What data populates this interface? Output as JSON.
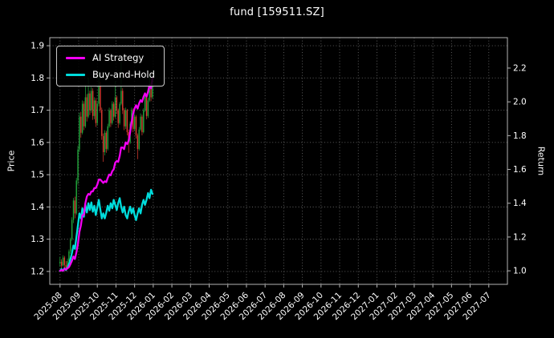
{
  "title": "fund [159511.SZ]",
  "legend": {
    "items": [
      {
        "label": "AI Strategy",
        "color": "#f400f4"
      },
      {
        "label": "Buy-and-Hold",
        "color": "#00dcdc"
      }
    ]
  },
  "colors": {
    "background": "#000000",
    "text": "#ffffff",
    "grid": "#666666",
    "frame": "#b3b3b3"
  },
  "chart_data": {
    "type": "candlestick+line",
    "title": "fund [159511.SZ]",
    "x_unit": "months since 2025-08 (index into x_tick_labels)",
    "x_tick_labels": [
      "2025-08",
      "2025-09",
      "2025-10",
      "2025-11",
      "2025-12",
      "2026-01",
      "2026-02",
      "2026-03",
      "2026-04",
      "2026-05",
      "2026-06",
      "2026-07",
      "2026-08",
      "2026-09",
      "2026-10",
      "2026-11",
      "2026-12",
      "2027-01",
      "2027-02",
      "2027-03",
      "2027-04",
      "2027-05",
      "2027-06",
      "2027-07"
    ],
    "x_range": [
      -0.55,
      24.0
    ],
    "price_axis": {
      "label": "Price",
      "ticks": [
        1.2,
        1.3,
        1.4,
        1.5,
        1.6,
        1.7,
        1.8,
        1.9
      ],
      "range": [
        1.16,
        1.925
      ]
    },
    "return_axis": {
      "label": "Return",
      "ticks": [
        1.0,
        1.2,
        1.4,
        1.6,
        1.8,
        2.0,
        2.2
      ],
      "range": [
        0.92,
        2.38
      ]
    },
    "grid": true,
    "legend_position": "upper-left",
    "candle_colors": {
      "up": "#22aa3c",
      "down": "#e03c31"
    },
    "x": [
      0.0,
      0.08,
      0.16,
      0.24,
      0.32,
      0.4,
      0.48,
      0.56,
      0.64,
      0.72,
      0.8,
      0.88,
      0.96,
      1.04,
      1.12,
      1.2,
      1.28,
      1.36,
      1.44,
      1.52,
      1.6,
      1.68,
      1.76,
      1.84,
      1.92,
      2.0,
      2.08,
      2.16,
      2.24,
      2.32,
      2.4,
      2.48,
      2.56,
      2.64,
      2.72,
      2.8,
      2.88,
      2.96,
      3.04,
      3.12,
      3.2,
      3.28,
      3.36,
      3.44,
      3.52,
      3.6,
      3.68,
      3.76,
      3.84,
      3.92,
      4.0,
      4.08,
      4.16,
      4.24,
      4.32,
      4.4,
      4.48,
      4.56,
      4.64,
      4.72,
      4.8,
      4.88,
      4.96
    ],
    "ohlc": [
      [
        1.225,
        1.245,
        1.215,
        1.23
      ],
      [
        1.23,
        1.238,
        1.21,
        1.218
      ],
      [
        1.218,
        1.25,
        1.215,
        1.243
      ],
      [
        1.243,
        1.248,
        1.212,
        1.22
      ],
      [
        1.22,
        1.232,
        1.2,
        1.212
      ],
      [
        1.212,
        1.24,
        1.208,
        1.232
      ],
      [
        1.232,
        1.268,
        1.228,
        1.262
      ],
      [
        1.262,
        1.305,
        1.255,
        1.3
      ],
      [
        1.3,
        1.368,
        1.295,
        1.36
      ],
      [
        1.36,
        1.428,
        1.35,
        1.42
      ],
      [
        1.42,
        1.432,
        1.365,
        1.38
      ],
      [
        1.38,
        1.49,
        1.375,
        1.482
      ],
      [
        1.482,
        1.59,
        1.47,
        1.578
      ],
      [
        1.578,
        1.692,
        1.57,
        1.68
      ],
      [
        1.68,
        1.695,
        1.615,
        1.63
      ],
      [
        1.63,
        1.73,
        1.625,
        1.72
      ],
      [
        1.72,
        1.728,
        1.638,
        1.65
      ],
      [
        1.65,
        1.78,
        1.645,
        1.74
      ],
      [
        1.74,
        1.75,
        1.665,
        1.68
      ],
      [
        1.68,
        1.8,
        1.675,
        1.752
      ],
      [
        1.752,
        1.76,
        1.685,
        1.7
      ],
      [
        1.7,
        1.772,
        1.692,
        1.76
      ],
      [
        1.76,
        1.768,
        1.67,
        1.682
      ],
      [
        1.682,
        1.74,
        1.672,
        1.73
      ],
      [
        1.73,
        1.738,
        1.648,
        1.66
      ],
      [
        1.66,
        1.728,
        1.652,
        1.72
      ],
      [
        1.72,
        1.82,
        1.712,
        1.78
      ],
      [
        1.78,
        1.788,
        1.692,
        1.7
      ],
      [
        1.7,
        1.708,
        1.608,
        1.62
      ],
      [
        1.62,
        1.628,
        1.54,
        1.57
      ],
      [
        1.57,
        1.638,
        1.56,
        1.63
      ],
      [
        1.63,
        1.636,
        1.568,
        1.58
      ],
      [
        1.58,
        1.658,
        1.575,
        1.65
      ],
      [
        1.65,
        1.708,
        1.645,
        1.7
      ],
      [
        1.7,
        1.705,
        1.648,
        1.66
      ],
      [
        1.66,
        1.728,
        1.655,
        1.72
      ],
      [
        1.72,
        1.726,
        1.668,
        1.68
      ],
      [
        1.68,
        1.79,
        1.675,
        1.74
      ],
      [
        1.74,
        1.745,
        1.688,
        1.7
      ],
      [
        1.7,
        1.705,
        1.645,
        1.66
      ],
      [
        1.66,
        1.726,
        1.655,
        1.72
      ],
      [
        1.72,
        1.85,
        1.715,
        1.76
      ],
      [
        1.76,
        1.768,
        1.688,
        1.7
      ],
      [
        1.7,
        1.706,
        1.638,
        1.65
      ],
      [
        1.65,
        1.708,
        1.642,
        1.7
      ],
      [
        1.7,
        1.704,
        1.622,
        1.632
      ],
      [
        1.632,
        1.64,
        1.568,
        1.6
      ],
      [
        1.6,
        1.665,
        1.595,
        1.658
      ],
      [
        1.658,
        1.708,
        1.652,
        1.7
      ],
      [
        1.7,
        1.705,
        1.632,
        1.642
      ],
      [
        1.642,
        1.688,
        1.635,
        1.68
      ],
      [
        1.68,
        1.685,
        1.612,
        1.622
      ],
      [
        1.622,
        1.628,
        1.548,
        1.58
      ],
      [
        1.58,
        1.648,
        1.575,
        1.64
      ],
      [
        1.64,
        1.69,
        1.635,
        1.68
      ],
      [
        1.68,
        1.686,
        1.622,
        1.632
      ],
      [
        1.632,
        1.706,
        1.628,
        1.7
      ],
      [
        1.7,
        1.748,
        1.695,
        1.74
      ],
      [
        1.74,
        1.745,
        1.672,
        1.682
      ],
      [
        1.682,
        1.738,
        1.676,
        1.73
      ],
      [
        1.73,
        1.81,
        1.725,
        1.78
      ],
      [
        1.78,
        1.786,
        1.728,
        1.74
      ],
      [
        1.74,
        1.782,
        1.735,
        1.772
      ]
    ],
    "series": [
      {
        "name": "AI Strategy",
        "axis": "return",
        "color": "#f400f4",
        "values": [
          1.0,
          1.005,
          1.0,
          1.012,
          1.008,
          1.015,
          1.022,
          1.04,
          1.06,
          1.085,
          1.07,
          1.11,
          1.16,
          1.23,
          1.27,
          1.33,
          1.33,
          1.4,
          1.44,
          1.455,
          1.45,
          1.47,
          1.47,
          1.49,
          1.49,
          1.51,
          1.54,
          1.54,
          1.53,
          1.52,
          1.53,
          1.525,
          1.55,
          1.57,
          1.565,
          1.59,
          1.6,
          1.64,
          1.65,
          1.645,
          1.68,
          1.73,
          1.73,
          1.72,
          1.76,
          1.75,
          1.77,
          1.82,
          1.88,
          1.93,
          1.96,
          1.98,
          1.96,
          1.99,
          2.01,
          2.0,
          2.03,
          2.05,
          2.03,
          2.06,
          2.1,
          2.08,
          2.14
        ]
      },
      {
        "name": "Buy-and-Hold",
        "axis": "return",
        "color": "#00dcdc",
        "values": [
          1.0,
          1.01,
          1.0,
          1.015,
          1.005,
          1.02,
          1.04,
          1.07,
          1.105,
          1.15,
          1.13,
          1.2,
          1.27,
          1.34,
          1.31,
          1.37,
          1.32,
          1.39,
          1.345,
          1.4,
          1.36,
          1.405,
          1.35,
          1.385,
          1.33,
          1.375,
          1.42,
          1.365,
          1.31,
          1.34,
          1.31,
          1.345,
          1.385,
          1.355,
          1.4,
          1.37,
          1.42,
          1.39,
          1.36,
          1.4,
          1.43,
          1.38,
          1.345,
          1.38,
          1.33,
          1.31,
          1.35,
          1.38,
          1.34,
          1.37,
          1.33,
          1.3,
          1.34,
          1.37,
          1.34,
          1.39,
          1.42,
          1.39,
          1.42,
          1.46,
          1.43,
          1.48,
          1.455
        ]
      }
    ]
  }
}
